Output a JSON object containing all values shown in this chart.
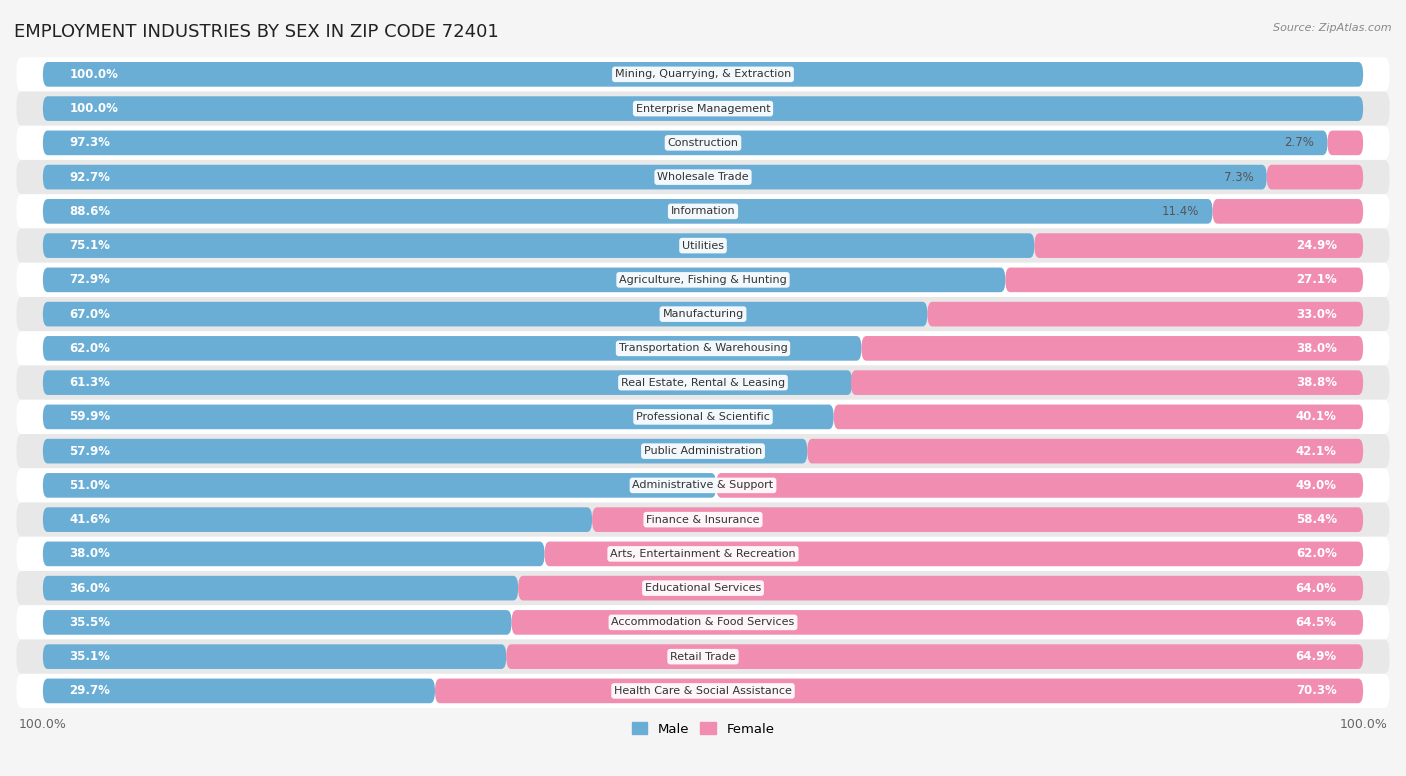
{
  "title": "EMPLOYMENT INDUSTRIES BY SEX IN ZIP CODE 72401",
  "source": "Source: ZipAtlas.com",
  "categories": [
    "Mining, Quarrying, & Extraction",
    "Enterprise Management",
    "Construction",
    "Wholesale Trade",
    "Information",
    "Utilities",
    "Agriculture, Fishing & Hunting",
    "Manufacturing",
    "Transportation & Warehousing",
    "Real Estate, Rental & Leasing",
    "Professional & Scientific",
    "Public Administration",
    "Administrative & Support",
    "Finance & Insurance",
    "Arts, Entertainment & Recreation",
    "Educational Services",
    "Accommodation & Food Services",
    "Retail Trade",
    "Health Care & Social Assistance"
  ],
  "male": [
    100.0,
    100.0,
    97.3,
    92.7,
    88.6,
    75.1,
    72.9,
    67.0,
    62.0,
    61.3,
    59.9,
    57.9,
    51.0,
    41.6,
    38.0,
    36.0,
    35.5,
    35.1,
    29.7
  ],
  "female": [
    0.0,
    0.0,
    2.7,
    7.3,
    11.4,
    24.9,
    27.1,
    33.0,
    38.0,
    38.8,
    40.1,
    42.1,
    49.0,
    58.4,
    62.0,
    64.0,
    64.5,
    64.9,
    70.3
  ],
  "male_color": "#6aaed6",
  "female_color": "#f08db0",
  "background_color": "#f0f0f0",
  "row_color_odd": "#ffffff",
  "row_color_even": "#e8e8e8",
  "bar_bg_color": "#d0d8e0",
  "title_fontsize": 13,
  "label_fontsize": 8.0,
  "pct_fontsize": 8.5,
  "bar_height": 0.72,
  "xlim": [
    0,
    100
  ]
}
